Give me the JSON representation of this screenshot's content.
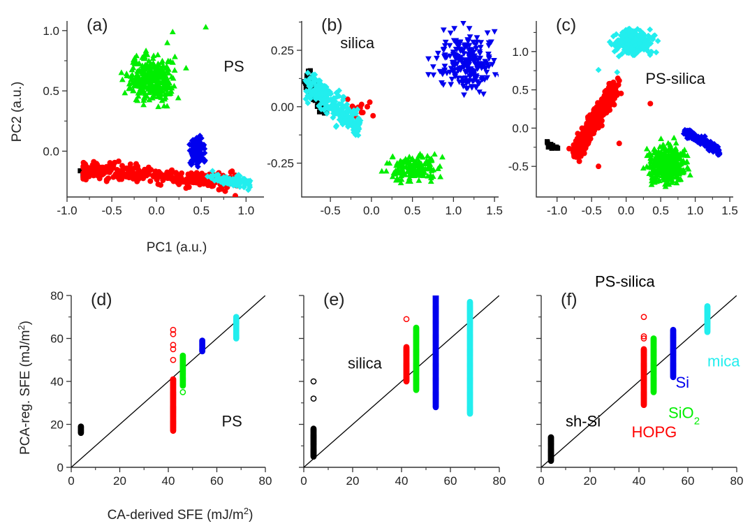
{
  "figure": {
    "colors": {
      "black": "#000000",
      "red": "#ff0000",
      "green": "#00ee00",
      "blue": "#0000ee",
      "cyan": "#22eeee",
      "axis": "#333333"
    }
  },
  "chart_data": [
    {
      "panel": "(a)",
      "type": "scatter",
      "xlabel": "PC1 (a.u.)",
      "ylabel": "PC2 (a.u.)",
      "xlim": [
        -1.0,
        1.2
      ],
      "ylim": [
        -0.38,
        1.08
      ],
      "xticks": [
        -1.0,
        -0.5,
        0.0,
        0.5,
        1.0
      ],
      "yticks": [
        0.0,
        0.5,
        1.0
      ],
      "xtick_labels": [
        "-1.0",
        "-0.5",
        "0.0",
        "0.5",
        "1.0"
      ],
      "ytick_labels": [
        "0.0",
        "0.5",
        "1.0"
      ],
      "annotations": [
        {
          "text": "PS",
          "x": 0.75,
          "y": 0.66
        }
      ],
      "series": [
        {
          "color": "black",
          "marker": "square",
          "cluster": {
            "type": "line",
            "from": [
              -0.84,
              -0.18
            ],
            "to": [
              -0.8,
              -0.17
            ],
            "spread": 0.015,
            "n": 10
          }
        },
        {
          "color": "red",
          "marker": "circle",
          "cluster": {
            "type": "band",
            "x": [
              -0.82,
              0.9
            ],
            "y_center": [
              -0.155,
              -0.25
            ],
            "y_spread": 0.035,
            "n": 330
          },
          "outliers": [
            [
              0.88,
              -0.37
            ],
            [
              0.72,
              -0.28
            ],
            [
              0.46,
              -0.2
            ],
            [
              0.26,
              -0.22
            ]
          ]
        },
        {
          "color": "blue",
          "marker": "diamond",
          "cluster": {
            "type": "blob",
            "center": [
              0.45,
              -0.02
            ],
            "spread": [
              0.04,
              0.06
            ],
            "n": 120
          }
        },
        {
          "color": "cyan",
          "marker": "diamond",
          "cluster": {
            "type": "line",
            "from": [
              0.62,
              -0.22
            ],
            "to": [
              1.05,
              -0.27
            ],
            "spread": 0.025,
            "n": 80
          },
          "outliers": [
            [
              0.57,
              -0.21
            ]
          ]
        },
        {
          "color": "green",
          "marker": "triangle-up",
          "cluster": {
            "type": "blob",
            "center": [
              -0.05,
              0.6
            ],
            "spread": [
              0.13,
              0.09
            ],
            "n": 320
          },
          "outliers": [
            [
              0.55,
              1.03
            ],
            [
              0.18,
              0.99
            ],
            [
              0.12,
              0.9
            ],
            [
              0.02,
              0.37
            ],
            [
              -0.3,
              0.53
            ]
          ]
        }
      ]
    },
    {
      "panel": "(b)",
      "type": "scatter",
      "xlabel": "",
      "ylabel": "",
      "xlim": [
        -0.85,
        1.55
      ],
      "ylim": [
        -0.4,
        0.38
      ],
      "xticks": [
        -0.5,
        0.0,
        0.5,
        1.0,
        1.5
      ],
      "yticks": [
        -0.25,
        0.0,
        0.25
      ],
      "xtick_labels": [
        "-0.5",
        "0.0",
        "0.5",
        "1.0",
        "1.5"
      ],
      "ytick_labels": [
        "-0.25",
        "0.00",
        "0.25"
      ],
      "annotations": [
        {
          "text": "silica",
          "x": -0.38,
          "y": 0.26
        }
      ],
      "series": [
        {
          "color": "black",
          "marker": "square",
          "cluster": {
            "type": "line",
            "from": [
              -0.8,
              0.13
            ],
            "to": [
              -0.55,
              -0.02
            ],
            "spread": 0.02,
            "n": 70
          }
        },
        {
          "color": "red",
          "marker": "circle",
          "cluster": {
            "type": "blob",
            "center": [
              -0.2,
              0.0
            ],
            "spread": [
              0.06,
              0.02
            ],
            "n": 10
          },
          "outliers": [
            [
              -0.02,
              0.02
            ],
            [
              0.02,
              -0.04
            ],
            [
              -0.05,
              0.0
            ],
            [
              -0.12,
              0.01
            ]
          ]
        },
        {
          "color": "cyan",
          "marker": "diamond",
          "cluster": {
            "type": "line",
            "from": [
              -0.78,
              0.1
            ],
            "to": [
              -0.15,
              -0.08
            ],
            "spread": 0.03,
            "n": 260
          }
        },
        {
          "color": "green",
          "marker": "triangle-up",
          "cluster": {
            "type": "blob",
            "center": [
              0.52,
              -0.27
            ],
            "spread": [
              0.15,
              0.03
            ],
            "n": 140
          },
          "outliers": [
            [
              0.77,
              -0.21
            ],
            [
              0.22,
              -0.25
            ],
            [
              0.45,
              -0.33
            ]
          ]
        },
        {
          "color": "blue",
          "marker": "triangle-down",
          "cluster": {
            "type": "blob",
            "center": [
              1.15,
              0.2
            ],
            "spread": [
              0.17,
              0.06
            ],
            "n": 220
          },
          "outliers": [
            [
              0.88,
              0.34
            ],
            [
              1.12,
              0.37
            ],
            [
              1.38,
              0.12
            ]
          ]
        }
      ]
    },
    {
      "panel": "(c)",
      "type": "scatter",
      "xlabel": "",
      "ylabel": "",
      "xlim": [
        -1.3,
        1.55
      ],
      "ylim": [
        -0.9,
        1.4
      ],
      "xticks": [
        -1.0,
        -0.5,
        0.0,
        0.5,
        1.0,
        1.5
      ],
      "yticks": [
        -0.5,
        0.0,
        0.5,
        1.0
      ],
      "xtick_labels": [
        "-1.0",
        "-0.5",
        "0.0",
        "0.5",
        "1.0",
        "1.5"
      ],
      "ytick_labels": [
        "-0.5",
        "0.0",
        "0.5",
        "1.0"
      ],
      "annotations": [
        {
          "text": "PS-silica",
          "x": 0.28,
          "y": 0.58
        }
      ],
      "series": [
        {
          "color": "black",
          "marker": "square",
          "cluster": {
            "type": "line",
            "from": [
              -1.15,
              -0.2
            ],
            "to": [
              -1.0,
              -0.27
            ],
            "spread": 0.02,
            "n": 20
          }
        },
        {
          "color": "red",
          "marker": "circle",
          "cluster": {
            "type": "line",
            "from": [
              -0.75,
              -0.35
            ],
            "to": [
              -0.15,
              0.55
            ],
            "spread": 0.06,
            "n": 420
          },
          "outliers": [
            [
              0.35,
              0.32
            ],
            [
              -0.1,
              -0.2
            ],
            [
              -0.4,
              -0.5
            ],
            [
              -0.12,
              0.65
            ],
            [
              -0.1,
              0.62
            ]
          ]
        },
        {
          "color": "cyan",
          "marker": "diamond",
          "cluster": {
            "type": "blob",
            "center": [
              0.12,
              1.13
            ],
            "spread": [
              0.14,
              0.08
            ],
            "n": 220
          },
          "outliers": [
            [
              -0.4,
              0.76
            ],
            [
              -0.13,
              0.73
            ]
          ]
        },
        {
          "color": "blue",
          "marker": "diamond",
          "cluster": {
            "type": "line",
            "from": [
              0.85,
              -0.05
            ],
            "to": [
              1.35,
              -0.3
            ],
            "spread": 0.03,
            "n": 160
          }
        },
        {
          "color": "green",
          "marker": "triangle-up",
          "cluster": {
            "type": "blob",
            "center": [
              0.6,
              -0.48
            ],
            "spread": [
              0.14,
              0.13
            ],
            "n": 320
          },
          "outliers": [
            [
              0.3,
              -0.27
            ],
            [
              0.85,
              -0.35
            ]
          ]
        }
      ]
    },
    {
      "panel": "(d)",
      "type": "scatter",
      "xlabel": "CA-derived SFE (mJ/m²)",
      "ylabel": "PCA-reg. SFE (mJ/m²)",
      "xlabel_main": "CA-derived SFE (mJ/m",
      "xlabel_sup": "2",
      "xlabel_end": ")",
      "ylabel_main": "PCA-reg. SFE (mJ/m",
      "ylabel_sup": "2",
      "ylabel_end": ")",
      "xlim": [
        0,
        80
      ],
      "ylim": [
        0,
        80
      ],
      "xticks": [
        0,
        20,
        40,
        60,
        80
      ],
      "yticks": [
        0,
        20,
        40,
        60,
        80
      ],
      "xtick_labels": [
        "0",
        "20",
        "40",
        "60",
        "80"
      ],
      "ytick_labels": [
        "0",
        "20",
        "40",
        "60",
        "80"
      ],
      "diagonal": true,
      "annotations": [
        {
          "text": "PS",
          "x": 62,
          "y": 19
        }
      ],
      "columns": [
        {
          "color": "black",
          "x": 4,
          "ymin": 16,
          "ymax": 19
        },
        {
          "color": "red",
          "x": 42,
          "ymin": 17,
          "ymax": 41,
          "extra": [
            50,
            55,
            57,
            62,
            64
          ]
        },
        {
          "color": "green",
          "x": 46,
          "ymin": 38,
          "ymax": 52,
          "extra": [
            35
          ]
        },
        {
          "color": "blue",
          "x": 54,
          "ymin": 54,
          "ymax": 59
        },
        {
          "color": "cyan",
          "x": 68,
          "ymin": 60,
          "ymax": 70
        }
      ]
    },
    {
      "panel": "(e)",
      "type": "scatter",
      "xlabel": "",
      "ylabel": "",
      "xlim": [
        0,
        80
      ],
      "ylim": [
        0,
        80
      ],
      "xticks": [
        0,
        20,
        40,
        60,
        80
      ],
      "yticks": [
        0,
        20,
        40,
        60,
        80
      ],
      "xtick_labels": [
        "0",
        "20",
        "40",
        "60",
        "80"
      ],
      "ytick_labels": [],
      "diagonal": true,
      "annotations": [
        {
          "text": "silica",
          "x": 18,
          "y": 46
        }
      ],
      "columns": [
        {
          "color": "black",
          "x": 4,
          "ymin": 5,
          "ymax": 18,
          "extra": [
            32,
            40
          ]
        },
        {
          "color": "red",
          "x": 42,
          "ymin": 40,
          "ymax": 56,
          "extra": [
            69
          ]
        },
        {
          "color": "green",
          "x": 46,
          "ymin": 36,
          "ymax": 65
        },
        {
          "color": "blue",
          "x": 54,
          "ymin": 28,
          "ymax": 81
        },
        {
          "color": "cyan",
          "x": 68,
          "ymin": 25,
          "ymax": 77
        }
      ]
    },
    {
      "panel": "(f)",
      "type": "scatter",
      "xlabel": "",
      "ylabel": "",
      "xlim": [
        0,
        80
      ],
      "ylim": [
        0,
        80
      ],
      "xticks": [
        0,
        20,
        40,
        60,
        80
      ],
      "yticks": [
        0,
        20,
        40,
        60,
        80
      ],
      "xtick_labels": [
        "0",
        "20",
        "40",
        "60",
        "80"
      ],
      "ytick_labels": [],
      "diagonal": true,
      "annotations": [
        {
          "text": "PS-silica",
          "x": 22,
          "y": 84,
          "color": "black"
        },
        {
          "text": "sh-Si",
          "x": 10,
          "y": 19,
          "color": "black"
        },
        {
          "text": "HOPG",
          "x": 37,
          "y": 14,
          "color": "red"
        },
        {
          "text": "SiO",
          "sub": "2",
          "x": 52,
          "y": 23,
          "color": "green"
        },
        {
          "text": "Si",
          "x": 55,
          "y": 37,
          "color": "blue"
        },
        {
          "text": "mica",
          "x": 68,
          "y": 47,
          "color": "cyan"
        }
      ],
      "columns": [
        {
          "color": "black",
          "x": 4,
          "ymin": 3,
          "ymax": 14
        },
        {
          "color": "red",
          "x": 42,
          "ymin": 29,
          "ymax": 55,
          "extra": [
            60,
            61,
            70
          ]
        },
        {
          "color": "green",
          "x": 46,
          "ymin": 35,
          "ymax": 60
        },
        {
          "color": "blue",
          "x": 54,
          "ymin": 42,
          "ymax": 64
        },
        {
          "color": "cyan",
          "x": 68,
          "ymin": 63,
          "ymax": 75
        }
      ]
    }
  ]
}
